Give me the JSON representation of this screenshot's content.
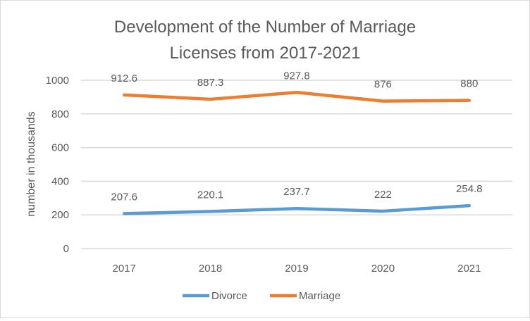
{
  "chart_data": {
    "type": "line",
    "title": [
      "Development of the Number of Marriage",
      "Licenses from 2017-2021"
    ],
    "xlabel": "",
    "ylabel": "number in thousands",
    "categories": [
      "2017",
      "2018",
      "2019",
      "2020",
      "2021"
    ],
    "ylim": [
      0,
      1000
    ],
    "yticks": [
      0,
      200,
      400,
      600,
      800,
      1000
    ],
    "grid": true,
    "legend_position": "bottom",
    "series": [
      {
        "name": "Divorce",
        "color": "#5B9BD5",
        "values": [
          207.6,
          220.1,
          237.7,
          222,
          254.8
        ],
        "labels": [
          "207.6",
          "220.1",
          "237.7",
          "222",
          "254.8"
        ]
      },
      {
        "name": "Marriage",
        "color": "#ED7D31",
        "values": [
          912.6,
          887.3,
          927.8,
          876,
          880
        ],
        "labels": [
          "912.6",
          "887.3",
          "927.8",
          "876",
          "880"
        ]
      }
    ]
  }
}
